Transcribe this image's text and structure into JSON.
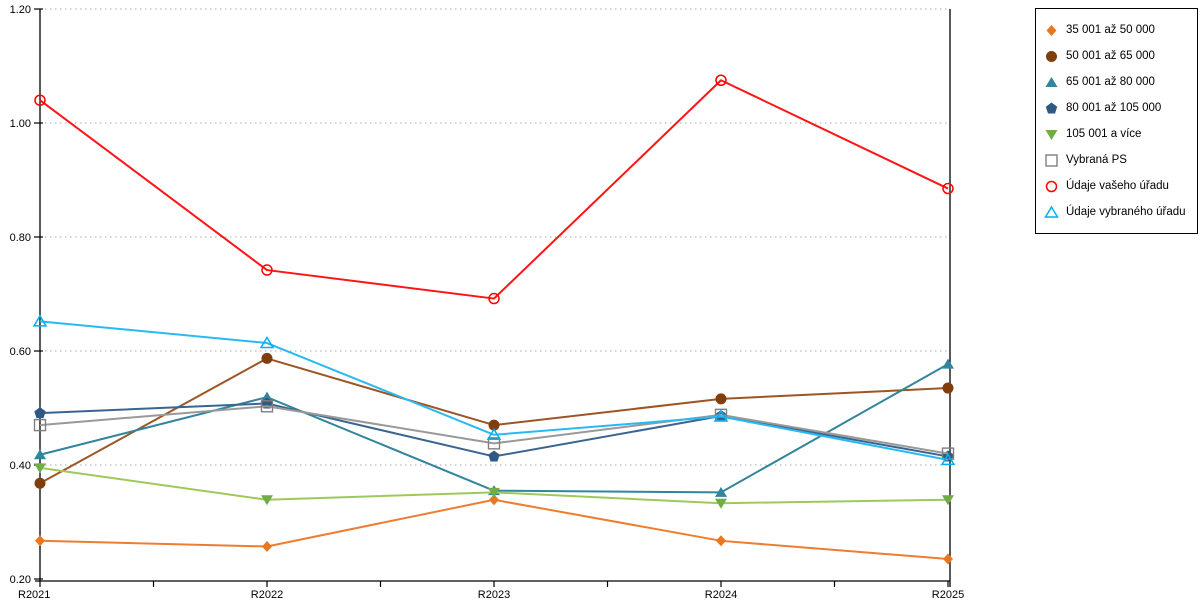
{
  "chart_data": {
    "type": "line",
    "title": "",
    "xlabel": "",
    "ylabel": "",
    "categories": [
      "R2021",
      "R2022",
      "R2023",
      "R2024",
      "R2025"
    ],
    "ylim": [
      0.2,
      1.2
    ],
    "yticks": [
      "0.20",
      "0.40",
      "0.60",
      "0.80",
      "1.00",
      "1.20"
    ],
    "ytick_values": [
      0.2,
      0.4,
      0.6,
      0.8,
      1.0,
      1.2
    ],
    "grid": "horizontal-dotted",
    "legend_position": "outside-top-right",
    "series": [
      {
        "name": "35 001 až 50 000",
        "marker": "diamond",
        "marker_color": "#e87722",
        "line_color": "#ed7d31",
        "values": [
          0.267,
          0.257,
          0.339,
          0.267,
          0.235
        ]
      },
      {
        "name": "50 001 až 65 000",
        "marker": "circle",
        "marker_color": "#7f3e0c",
        "line_color": "#9c5524",
        "values": [
          0.368,
          0.587,
          0.47,
          0.516,
          0.535
        ]
      },
      {
        "name": "65 001 až 80 000",
        "marker": "triangle-up",
        "marker_color": "#31859c",
        "line_color": "#31859c",
        "values": [
          0.418,
          0.519,
          0.355,
          0.352,
          0.577
        ]
      },
      {
        "name": "80 001 až 105 000",
        "marker": "pentagon",
        "marker_color": "#2e5984",
        "line_color": "#3a6591",
        "values": [
          0.491,
          0.508,
          0.415,
          0.486,
          0.415
        ]
      },
      {
        "name": "105 001 a více",
        "marker": "triangle-down",
        "marker_color": "#70ad47",
        "line_color": "#9dc95c",
        "values": [
          0.395,
          0.339,
          0.352,
          0.333,
          0.339
        ]
      },
      {
        "name": "Vybraná PS",
        "marker": "square-open",
        "marker_color": "#7f7f7f",
        "line_color": "#999999",
        "values": [
          0.47,
          0.503,
          0.438,
          0.488,
          0.42
        ]
      },
      {
        "name": "Údaje vašeho úřadu",
        "marker": "circle-open",
        "marker_color": "#ff0000",
        "line_color": "#ff1414",
        "values": [
          1.04,
          0.742,
          0.692,
          1.075,
          0.885
        ]
      },
      {
        "name": "Údaje vybraného úřadu",
        "marker": "triangle-open",
        "marker_color": "#00b0f0",
        "line_color": "#29b9f2",
        "values": [
          0.652,
          0.614,
          0.453,
          0.485,
          0.409
        ]
      }
    ]
  },
  "colors": {
    "axis": "#000000",
    "gridline": "#aaaaaa",
    "background": "#ffffff",
    "text": "#000000"
  }
}
